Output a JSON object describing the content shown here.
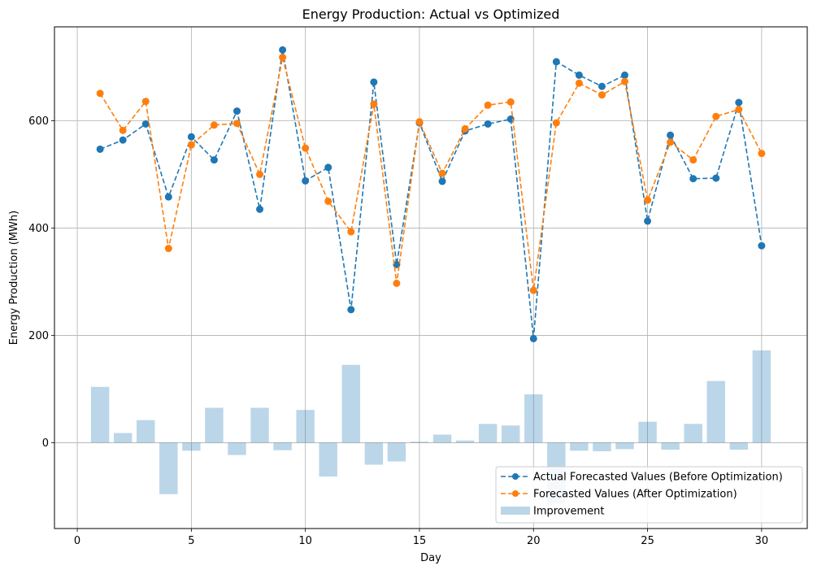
{
  "chart_data": {
    "type": "line",
    "title": "Energy Production: Actual vs Optimized",
    "xlabel": "Day",
    "ylabel": "Energy Production (MWh)",
    "xlim": [
      -1,
      32
    ],
    "ylim": [
      -160,
      775
    ],
    "xticks": [
      0,
      5,
      10,
      15,
      20,
      25,
      30
    ],
    "yticks": [
      0,
      200,
      400,
      600
    ],
    "grid": true,
    "legend_position": "lower-right",
    "x": [
      1,
      2,
      3,
      4,
      5,
      6,
      7,
      8,
      9,
      10,
      11,
      12,
      13,
      14,
      15,
      16,
      17,
      18,
      19,
      20,
      21,
      22,
      23,
      24,
      25,
      26,
      27,
      28,
      29,
      30
    ],
    "series": [
      {
        "name": "Actual Forecasted Values (Before Optimization)",
        "type": "line",
        "style": "dashed-with-markers",
        "color": "#1f77b4",
        "values": [
          547,
          564,
          594,
          458,
          570,
          527,
          618,
          435,
          732,
          488,
          513,
          248,
          672,
          332,
          596,
          487,
          581,
          594,
          603,
          194,
          710,
          685,
          664,
          685,
          413,
          573,
          492,
          493,
          634,
          367
        ]
      },
      {
        "name": "Forecasted Values (After Optimization)",
        "type": "line",
        "style": "dashed-with-markers",
        "color": "#ff7f0e",
        "values": [
          651,
          582,
          636,
          362,
          555,
          592,
          595,
          500,
          718,
          549,
          450,
          393,
          631,
          297,
          598,
          502,
          585,
          629,
          635,
          284,
          596,
          670,
          648,
          673,
          452,
          560,
          527,
          608,
          621,
          539
        ]
      },
      {
        "name": "Improvement",
        "type": "bar",
        "color": "#1f77b4",
        "opacity": 0.3,
        "values": [
          104,
          18,
          42,
          -96,
          -15,
          65,
          -23,
          65,
          -14,
          61,
          -63,
          145,
          -41,
          -35,
          2,
          15,
          4,
          35,
          32,
          90,
          -114,
          -15,
          -16,
          -12,
          39,
          -13,
          35,
          115,
          -13,
          172
        ]
      }
    ]
  }
}
